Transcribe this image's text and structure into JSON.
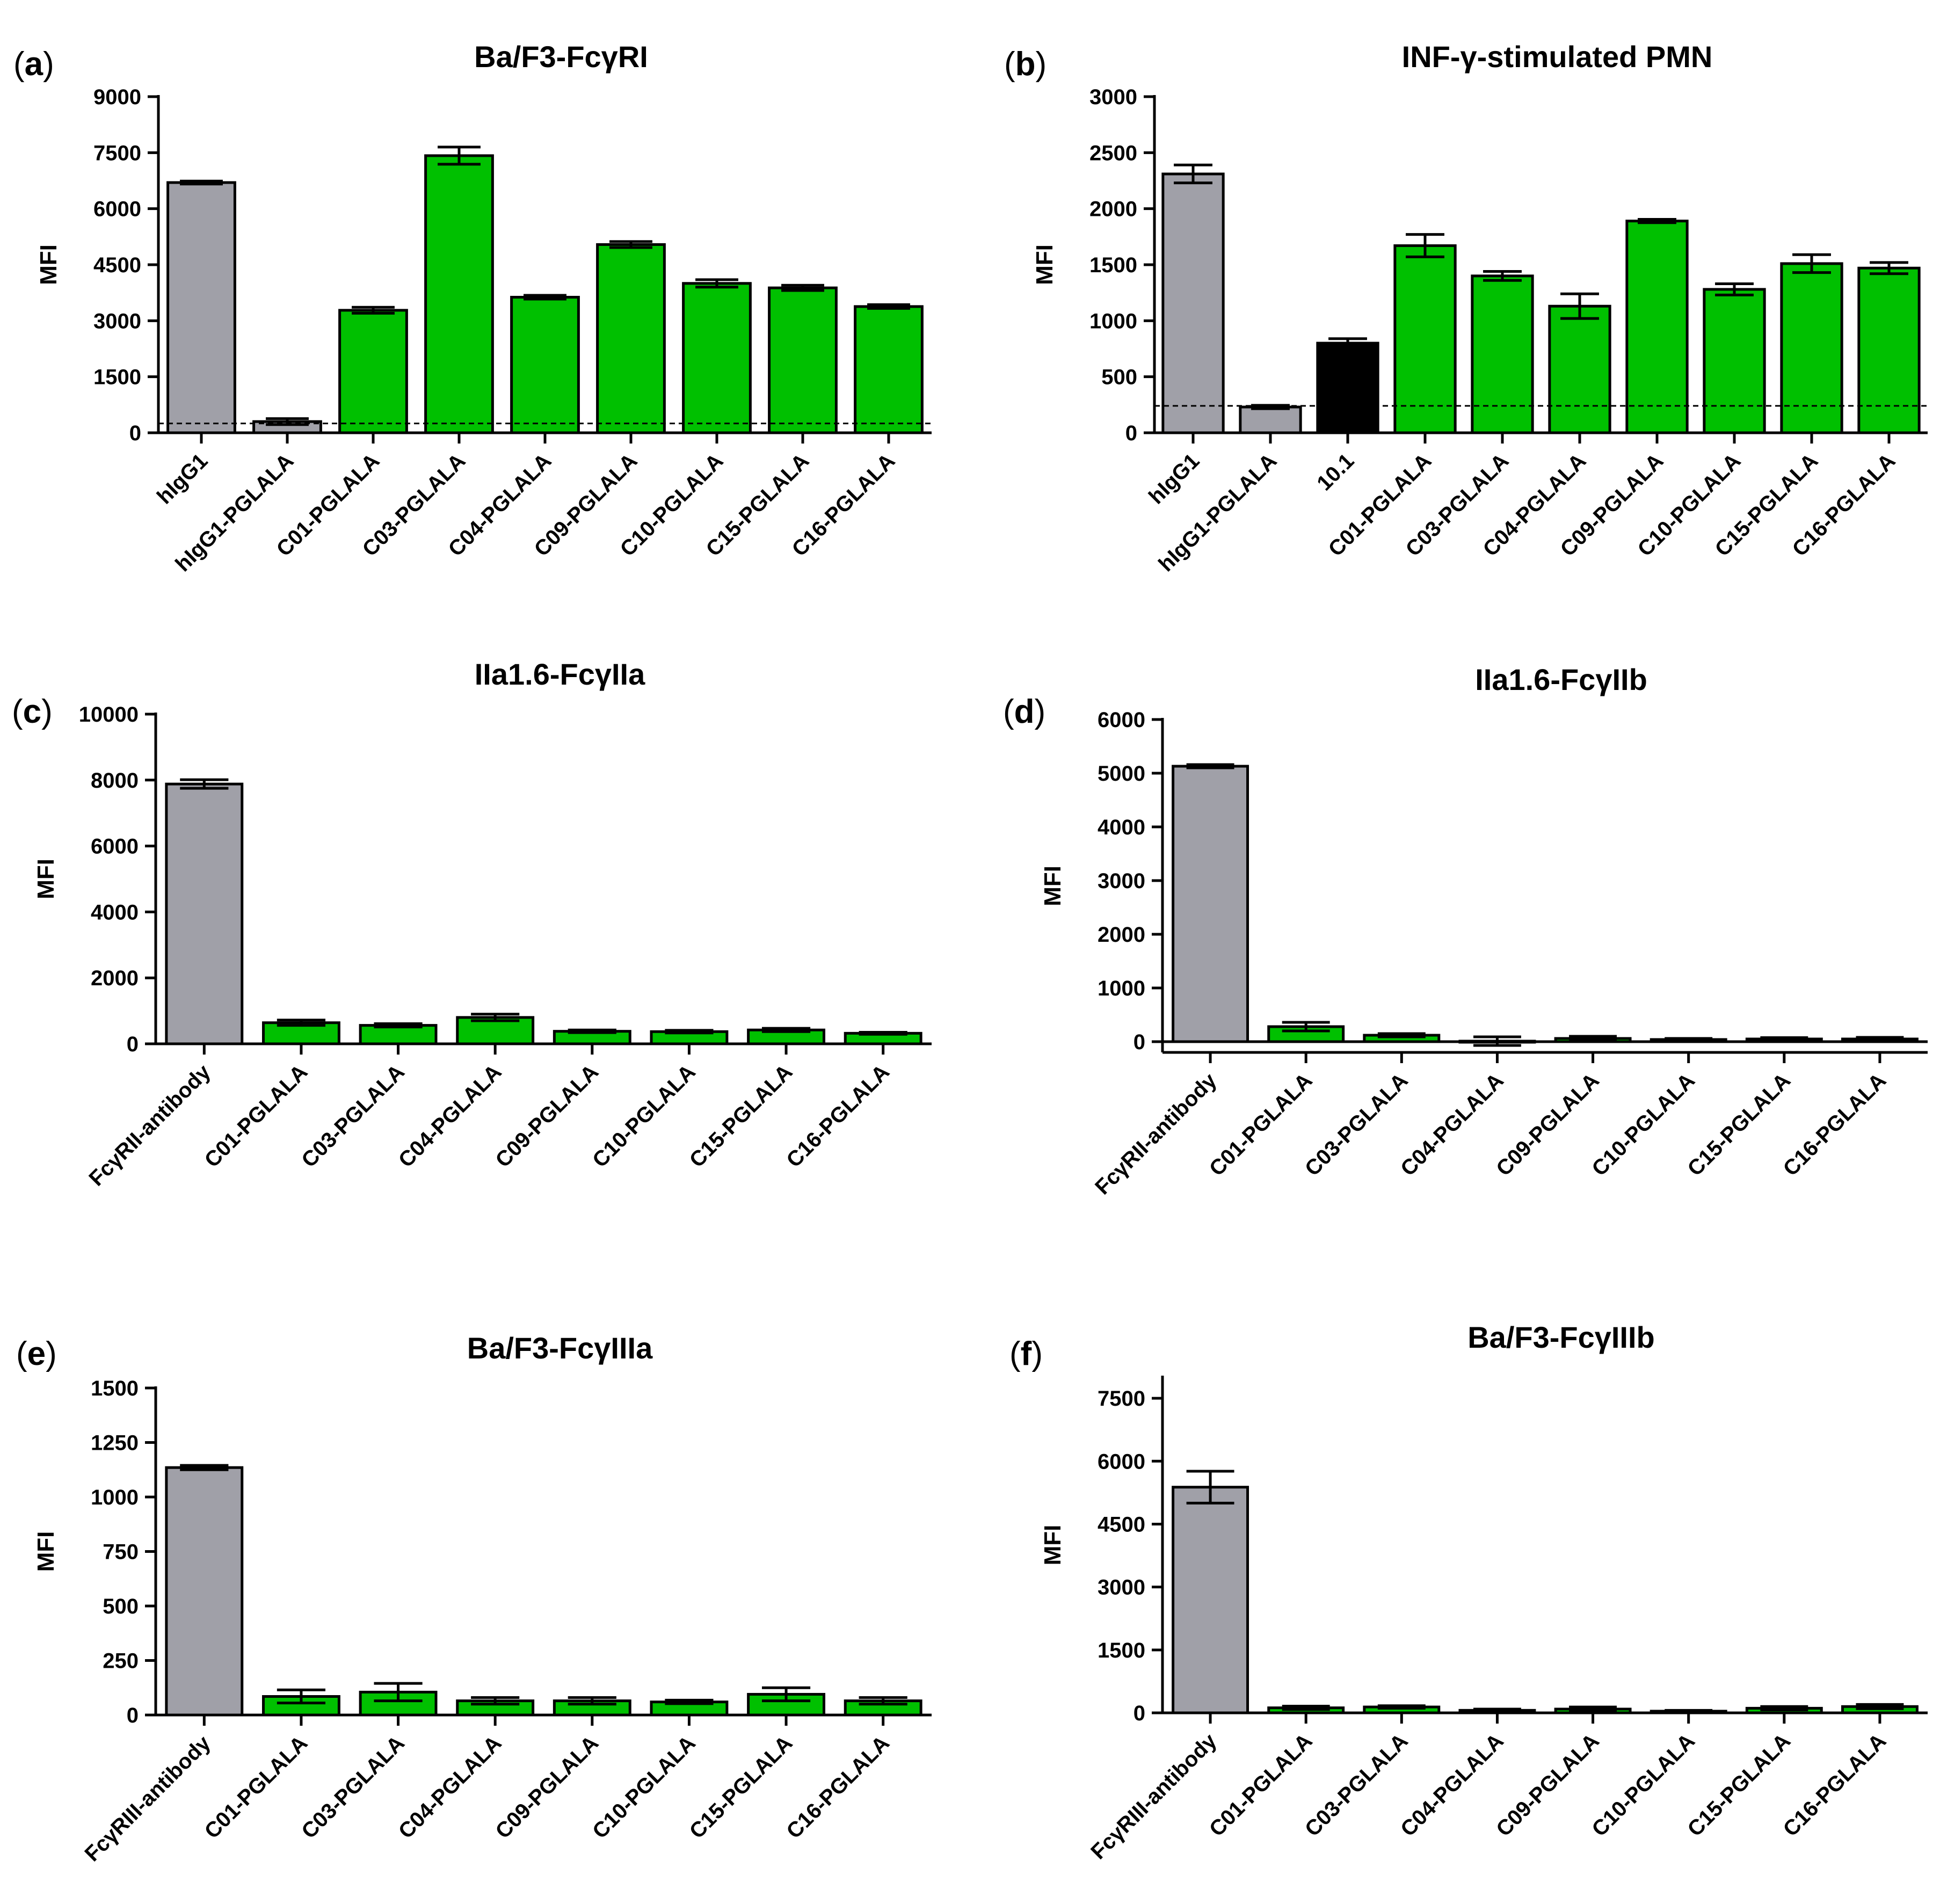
{
  "figure": {
    "colors": {
      "gray": "#a0a0a8",
      "green": "#00c000",
      "black": "#000000",
      "axis": "#000000"
    },
    "chart_data": [
      {
        "panel": "a",
        "type": "bar",
        "title": "Ba/F3-FcγRI",
        "xlabel": "",
        "ylabel": "MFI",
        "ylim": [
          0,
          9000
        ],
        "yticks": [
          0,
          1500,
          3000,
          4500,
          6000,
          7500,
          9000
        ],
        "baseline": 250,
        "zero_axis": false,
        "categories": [
          "hIgG1",
          "hIgG1-PGLALA",
          "C01-PGLALA",
          "C03-PGLALA",
          "C04-PGLALA",
          "C09-PGLALA",
          "C10-PGLALA",
          "C15-PGLALA",
          "C16-PGLALA"
        ],
        "values": [
          6700,
          300,
          3280,
          7420,
          3630,
          5040,
          4000,
          3880,
          3380
        ],
        "errors": [
          40,
          80,
          80,
          230,
          50,
          80,
          100,
          70,
          50
        ],
        "bar_colors": [
          "gray",
          "gray",
          "green",
          "green",
          "green",
          "green",
          "green",
          "green",
          "green"
        ]
      },
      {
        "panel": "b",
        "type": "bar",
        "title": "INF-γ-stimulated PMN",
        "xlabel": "",
        "ylabel": "MFI",
        "ylim": [
          0,
          3000
        ],
        "yticks": [
          0,
          500,
          1000,
          1500,
          2000,
          2500,
          3000
        ],
        "baseline": 240,
        "zero_axis": false,
        "categories": [
          "hIgG1",
          "hIgG1-PGLALA",
          "10.1",
          "C01-PGLALA",
          "C03-PGLALA",
          "C04-PGLALA",
          "C09-PGLALA",
          "C10-PGLALA",
          "C15-PGLALA",
          "C16-PGLALA"
        ],
        "values": [
          2310,
          230,
          800,
          1670,
          1400,
          1130,
          1890,
          1280,
          1510,
          1470
        ],
        "errors": [
          80,
          15,
          40,
          100,
          40,
          110,
          15,
          50,
          80,
          50
        ],
        "bar_colors": [
          "gray",
          "gray",
          "black",
          "green",
          "green",
          "green",
          "green",
          "green",
          "green",
          "green"
        ]
      },
      {
        "panel": "c",
        "type": "bar",
        "title": "IIa1.6-FcγIIa",
        "xlabel": "",
        "ylabel": "MFI",
        "ylim": [
          0,
          10000
        ],
        "yticks": [
          0,
          2000,
          4000,
          6000,
          8000,
          10000
        ],
        "baseline": null,
        "zero_axis": false,
        "categories": [
          "FcγRII-antibody",
          "C01-PGLALA",
          "C03-PGLALA",
          "C04-PGLALA",
          "C09-PGLALA",
          "C10-PGLALA",
          "C15-PGLALA",
          "C16-PGLALA"
        ],
        "values": [
          7880,
          640,
          560,
          800,
          380,
          370,
          420,
          320
        ],
        "errors": [
          130,
          80,
          50,
          100,
          40,
          40,
          50,
          30
        ],
        "bar_colors": [
          "gray",
          "green",
          "green",
          "green",
          "green",
          "green",
          "green",
          "green"
        ]
      },
      {
        "panel": "d",
        "type": "bar",
        "title": "IIa1.6-FcγIIb",
        "xlabel": "",
        "ylabel": "MFI",
        "ylim": [
          -200,
          6000
        ],
        "yticks": [
          0,
          1000,
          2000,
          3000,
          4000,
          5000,
          6000
        ],
        "baseline": null,
        "zero_axis": true,
        "categories": [
          "FcγRII-antibody",
          "C01-PGLALA",
          "C03-PGLALA",
          "C04-PGLALA",
          "C09-PGLALA",
          "C10-PGLALA",
          "C15-PGLALA",
          "C16-PGLALA"
        ],
        "values": [
          5130,
          280,
          120,
          10,
          60,
          40,
          50,
          50
        ],
        "errors": [
          30,
          80,
          30,
          80,
          40,
          20,
          25,
          30
        ],
        "bar_colors": [
          "gray",
          "green",
          "green",
          "green",
          "green",
          "green",
          "green",
          "green"
        ]
      },
      {
        "panel": "e",
        "type": "bar",
        "title": "Ba/F3-FcγIIIa",
        "xlabel": "",
        "ylabel": "MFI",
        "ylim": [
          0,
          1500
        ],
        "yticks": [
          0,
          250,
          500,
          750,
          1000,
          1250,
          1500
        ],
        "baseline": null,
        "zero_axis": false,
        "categories": [
          "FcγRIII-antibody",
          "C01-PGLALA",
          "C03-PGLALA",
          "C04-PGLALA",
          "C09-PGLALA",
          "C10-PGLALA",
          "C15-PGLALA",
          "C16-PGLALA"
        ],
        "values": [
          1135,
          85,
          105,
          65,
          65,
          60,
          95,
          65
        ],
        "errors": [
          10,
          30,
          40,
          15,
          15,
          8,
          30,
          15
        ],
        "bar_colors": [
          "gray",
          "green",
          "green",
          "green",
          "green",
          "green",
          "green",
          "green"
        ]
      },
      {
        "panel": "f",
        "type": "bar",
        "title": "Ba/F3-FcγIIIb",
        "xlabel": "",
        "ylabel": "MFI",
        "ylim": [
          0,
          8000
        ],
        "yticks": [
          0,
          1500,
          3000,
          4500,
          6000,
          7500
        ],
        "baseline": null,
        "zero_axis": false,
        "categories": [
          "FcγRIII-antibody",
          "C01-PGLALA",
          "C03-PGLALA",
          "C04-PGLALA",
          "C09-PGLALA",
          "C10-PGLALA",
          "C15-PGLALA",
          "C16-PGLALA"
        ],
        "values": [
          5380,
          120,
          140,
          60,
          90,
          40,
          110,
          150
        ],
        "errors": [
          380,
          40,
          30,
          30,
          50,
          20,
          40,
          50
        ],
        "bar_colors": [
          "gray",
          "green",
          "green",
          "green",
          "green",
          "green",
          "green",
          "green"
        ]
      }
    ]
  }
}
